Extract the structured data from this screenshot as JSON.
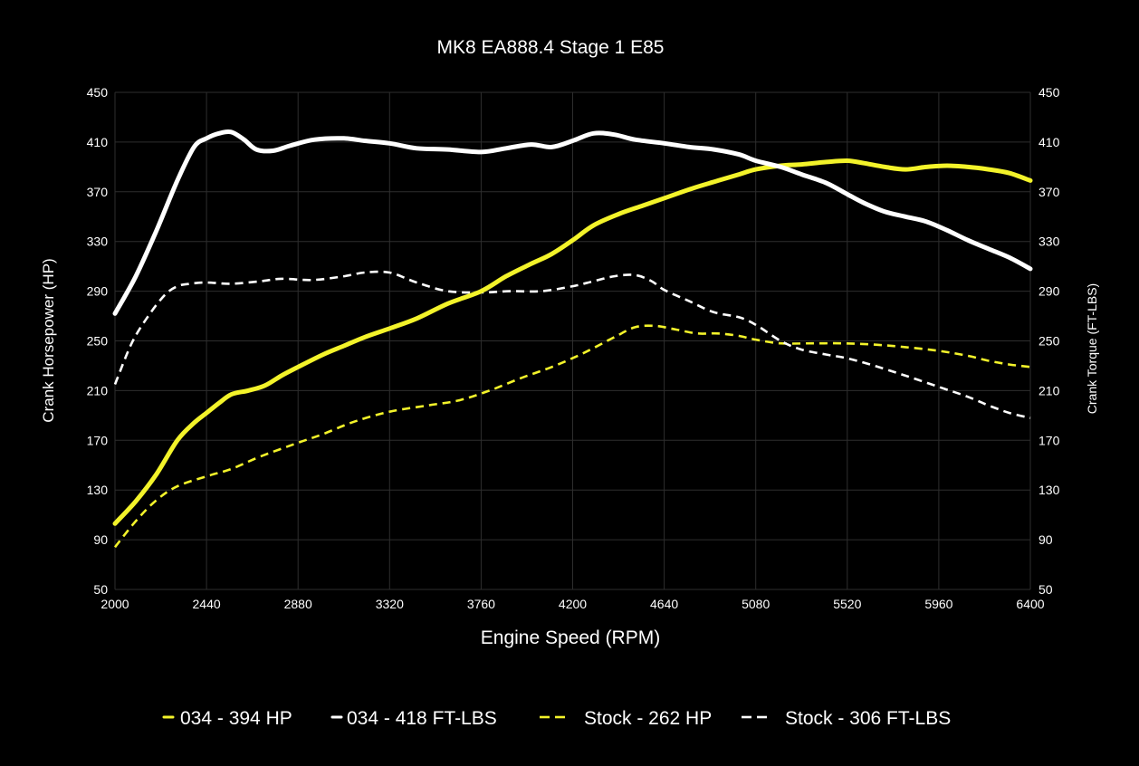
{
  "colors": {
    "background": "#000000",
    "grid": "#2e2e2e",
    "text": "#ffffff",
    "tuned_hp": "#f3f32a",
    "tuned_tq": "#ffffff",
    "stock_hp": "#f3f32a",
    "stock_tq": "#ffffff"
  },
  "chart_data": {
    "type": "line",
    "title": "MK8 EA888.4 Stage 1 E85",
    "xlabel": "Engine Speed (RPM)",
    "ylabel": "Crank Horsepower (HP)",
    "y2label": "Crank Torque (FT-LBS)",
    "xlim": [
      2000,
      6400
    ],
    "ylim": [
      50,
      450
    ],
    "y2lim": [
      50,
      450
    ],
    "grid": true,
    "legend_position": "bottom",
    "x_ticks": [
      "2000",
      "2440",
      "2880",
      "3320",
      "3760",
      "4200",
      "4640",
      "5080",
      "5520",
      "5960",
      "6400"
    ],
    "y_ticks": [
      "50",
      "90",
      "130",
      "170",
      "210",
      "250",
      "290",
      "330",
      "370",
      "410",
      "450"
    ],
    "y2_ticks": [
      "50",
      "90",
      "130",
      "170",
      "210",
      "250",
      "290",
      "330",
      "370",
      "410",
      "450"
    ],
    "series": [
      {
        "name": "034 - 394 HP",
        "axis": "left",
        "style": "solid",
        "color": "#f3f32a",
        "x": [
          2000,
          2100,
          2200,
          2300,
          2380,
          2440,
          2500,
          2560,
          2640,
          2720,
          2800,
          2880,
          3000,
          3100,
          3200,
          3320,
          3450,
          3600,
          3760,
          3880,
          4000,
          4100,
          4200,
          4300,
          4420,
          4540,
          4660,
          4780,
          4900,
          5000,
          5080,
          5200,
          5300,
          5420,
          5520,
          5600,
          5700,
          5800,
          5900,
          6000,
          6100,
          6200,
          6300,
          6400
        ],
        "y": [
          103,
          121,
          143,
          170,
          184,
          192,
          200,
          207,
          210,
          214,
          222,
          229,
          239,
          246,
          253,
          260,
          268,
          280,
          290,
          302,
          312,
          320,
          331,
          343,
          352,
          359,
          366,
          373,
          379,
          384,
          388,
          391,
          392,
          394,
          395,
          393,
          390,
          388,
          390,
          391,
          390,
          388,
          385,
          379
        ]
      },
      {
        "name": "034 - 418 FT-LBS",
        "axis": "right",
        "style": "solid",
        "color": "#ffffff",
        "x": [
          2000,
          2100,
          2200,
          2300,
          2380,
          2440,
          2500,
          2560,
          2620,
          2680,
          2760,
          2840,
          2960,
          3100,
          3200,
          3320,
          3450,
          3600,
          3760,
          3880,
          4000,
          4100,
          4200,
          4300,
          4400,
          4500,
          4640,
          4760,
          4880,
          5000,
          5080,
          5200,
          5300,
          5420,
          5520,
          5600,
          5700,
          5800,
          5900,
          6000,
          6100,
          6200,
          6300,
          6400
        ],
        "y": [
          272,
          302,
          339,
          379,
          406,
          413,
          417,
          418,
          412,
          404,
          403,
          407,
          412,
          413,
          411,
          409,
          405,
          404,
          402,
          405,
          408,
          406,
          411,
          417,
          416,
          412,
          409,
          406,
          404,
          400,
          395,
          390,
          384,
          377,
          368,
          361,
          354,
          350,
          346,
          339,
          331,
          324,
          317,
          308
        ]
      },
      {
        "name": "Stock - 262 HP",
        "axis": "left",
        "style": "dashed",
        "color": "#f3f32a",
        "x": [
          2000,
          2100,
          2200,
          2300,
          2440,
          2560,
          2700,
          2880,
          3000,
          3150,
          3320,
          3500,
          3650,
          3800,
          3950,
          4100,
          4250,
          4400,
          4500,
          4600,
          4700,
          4800,
          4900,
          5000,
          5080,
          5200,
          5350,
          5500,
          5650,
          5800,
          5960,
          6100,
          6200,
          6300,
          6400
        ],
        "y": [
          84,
          105,
          122,
          133,
          141,
          147,
          157,
          168,
          175,
          185,
          193,
          198,
          202,
          210,
          220,
          229,
          240,
          253,
          261,
          262,
          259,
          256,
          256,
          254,
          251,
          248,
          248,
          248,
          247,
          245,
          242,
          238,
          234,
          231,
          229
        ]
      },
      {
        "name": "Stock - 306 FT-LBS",
        "axis": "right",
        "style": "dashed",
        "color": "#ffffff",
        "x": [
          2000,
          2080,
          2160,
          2240,
          2300,
          2360,
          2440,
          2560,
          2700,
          2800,
          2950,
          3100,
          3200,
          3320,
          3450,
          3600,
          3760,
          3900,
          4050,
          4200,
          4300,
          4400,
          4500,
          4580,
          4640,
          4760,
          4880,
          5000,
          5080,
          5200,
          5300,
          5420,
          5520,
          5650,
          5800,
          5960,
          6100,
          6200,
          6300,
          6400
        ],
        "y": [
          215,
          248,
          270,
          287,
          294,
          296,
          297,
          296,
          298,
          300,
          299,
          302,
          305,
          305,
          297,
          290,
          289,
          290,
          290,
          294,
          298,
          302,
          303,
          298,
          291,
          282,
          273,
          269,
          263,
          250,
          243,
          239,
          236,
          230,
          222,
          213,
          205,
          198,
          192,
          188
        ]
      }
    ]
  }
}
